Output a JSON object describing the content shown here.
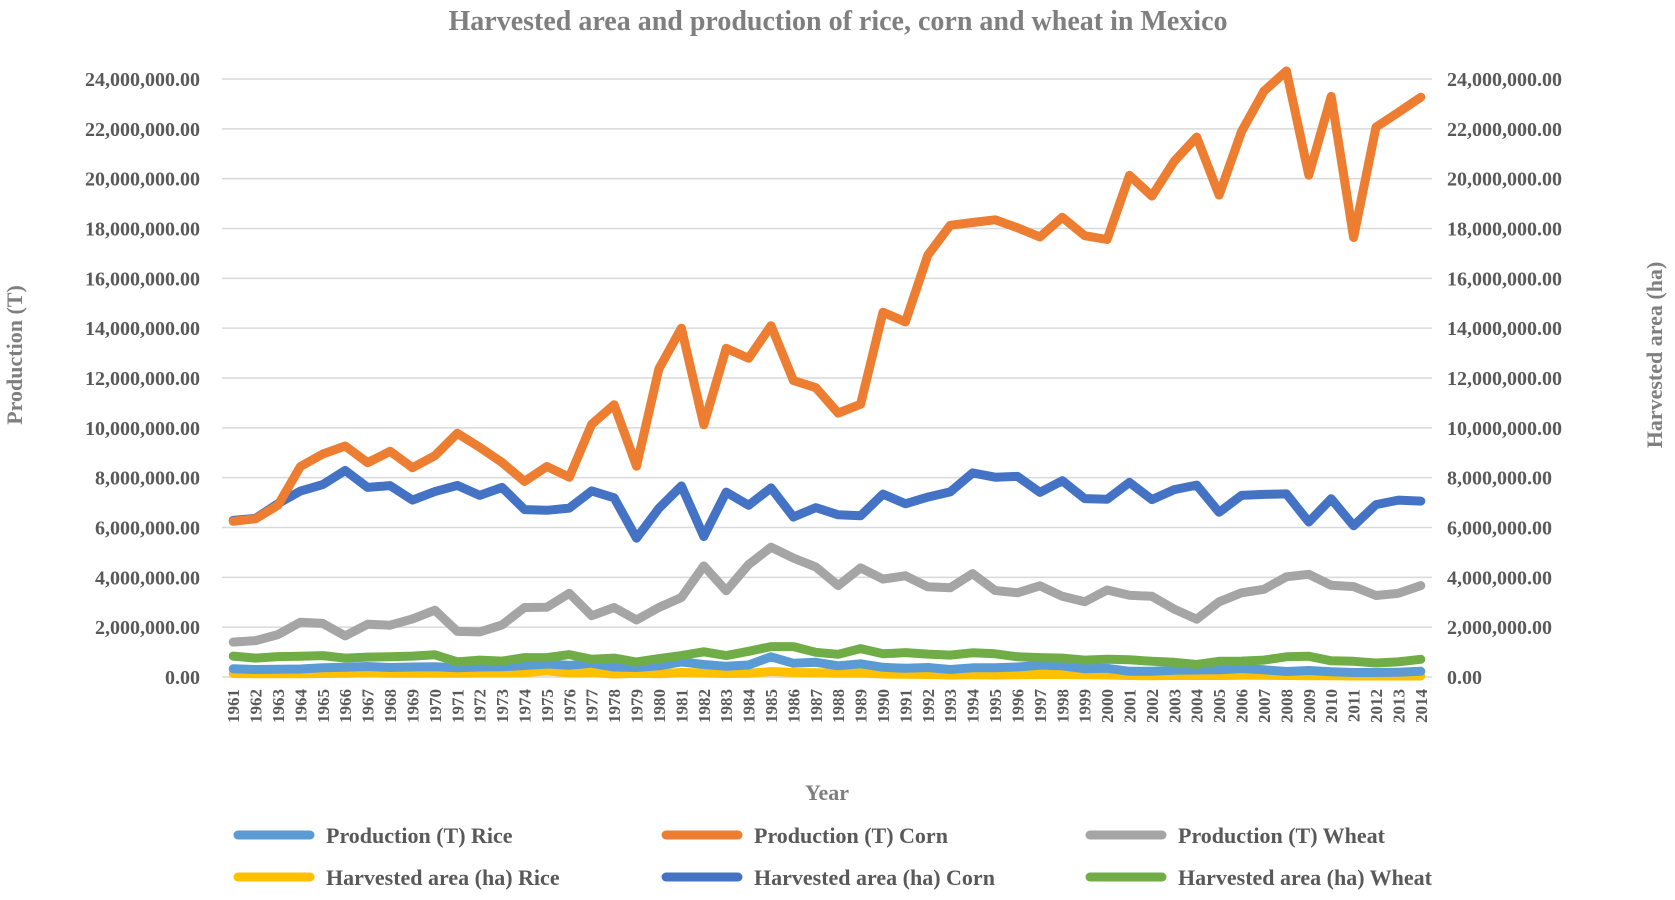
{
  "chart_data": {
    "type": "line",
    "title": "Harvested area and production of rice, corn and wheat in Mexico",
    "xlabel": "Year",
    "ylabel_left": "Production (T)",
    "ylabel_right": "Harvested area  (ha)",
    "ylim_left": [
      0,
      24000000
    ],
    "ylim_right": [
      0,
      24000000
    ],
    "y_tick_labels": [
      "0.00",
      "2,000,000.00",
      "4,000,000.00",
      "6,000,000.00",
      "8,000,000.00",
      "10,000,000.00",
      "12,000,000.00",
      "14,000,000.00",
      "16,000,000.00",
      "18,000,000.00",
      "20,000,000.00",
      "22,000,000.00",
      "24,000,000.00"
    ],
    "y_tick_values": [
      0,
      2000000,
      4000000,
      6000000,
      8000000,
      10000000,
      12000000,
      14000000,
      16000000,
      18000000,
      20000000,
      22000000,
      24000000
    ],
    "grid": true,
    "legend_position": "bottom",
    "x": [
      "1961",
      "1962",
      "1963",
      "1964",
      "1965",
      "1966",
      "1967",
      "1968",
      "1969",
      "1970",
      "1971",
      "1972",
      "1973",
      "1974",
      "1975",
      "1976",
      "1977",
      "1978",
      "1979",
      "1980",
      "1981",
      "1982",
      "1983",
      "1984",
      "1985",
      "1986",
      "1987",
      "1988",
      "1989",
      "1990",
      "1991",
      "1992",
      "1993",
      "1994",
      "1995",
      "1996",
      "1997",
      "1998",
      "1999",
      "2000",
      "2001",
      "2002",
      "2003",
      "2004",
      "2005",
      "2006",
      "2007",
      "2008",
      "2009",
      "2010",
      "2011",
      "2012",
      "2013",
      "2014"
    ],
    "series": [
      {
        "name": "Production (T) Rice",
        "color": "#5b9bd5",
        "axis": "left",
        "values": [
          330000,
          300000,
          310000,
          320000,
          370000,
          390000,
          420000,
          380000,
          400000,
          410000,
          370000,
          400000,
          410000,
          460000,
          520000,
          470000,
          550000,
          400000,
          380000,
          450000,
          600000,
          500000,
          430000,
          480000,
          810000,
          550000,
          590000,
          450000,
          530000,
          390000,
          350000,
          380000,
          300000,
          370000,
          370000,
          400000,
          470000,
          450000,
          330000,
          350000,
          230000,
          230000,
          270000,
          280000,
          290000,
          340000,
          290000,
          220000,
          260000,
          210000,
          180000,
          180000,
          190000,
          230000
        ]
      },
      {
        "name": "Production (T) Corn",
        "color": "#ed7d31",
        "axis": "left",
        "values": [
          6250000,
          6350000,
          6900000,
          8450000,
          8950000,
          9270000,
          8600000,
          9060000,
          8400000,
          8880000,
          9780000,
          9220000,
          8610000,
          7850000,
          8450000,
          8020000,
          10140000,
          10930000,
          8460000,
          12370000,
          14000000,
          10120000,
          13190000,
          12790000,
          14100000,
          11900000,
          11610000,
          10590000,
          10950000,
          14640000,
          14250000,
          16930000,
          18130000,
          18240000,
          18350000,
          18030000,
          17660000,
          18450000,
          17710000,
          17560000,
          20130000,
          19300000,
          20700000,
          21670000,
          19340000,
          21890000,
          23510000,
          24320000,
          20140000,
          23300000,
          17640000,
          22070000,
          22660000,
          23270000
        ]
      },
      {
        "name": "Production (T) Wheat",
        "color": "#a5a5a5",
        "axis": "left",
        "values": [
          1400000,
          1460000,
          1700000,
          2200000,
          2150000,
          1650000,
          2120000,
          2080000,
          2330000,
          2680000,
          1830000,
          1810000,
          2090000,
          2790000,
          2800000,
          3360000,
          2460000,
          2790000,
          2290000,
          2790000,
          3190000,
          4460000,
          3460000,
          4510000,
          5210000,
          4770000,
          4420000,
          3670000,
          4380000,
          3930000,
          4060000,
          3620000,
          3580000,
          4150000,
          3470000,
          3380000,
          3660000,
          3240000,
          3020000,
          3490000,
          3280000,
          3240000,
          2720000,
          2320000,
          3020000,
          3380000,
          3520000,
          4020000,
          4120000,
          3680000,
          3630000,
          3270000,
          3360000,
          3670000
        ]
      },
      {
        "name": "Harvested area (ha) Rice",
        "color": "#ffc000",
        "axis": "right",
        "values": [
          140000,
          130000,
          130000,
          130000,
          140000,
          150000,
          170000,
          150000,
          150000,
          160000,
          150000,
          160000,
          160000,
          170000,
          250000,
          160000,
          180000,
          120000,
          150000,
          130000,
          180000,
          160000,
          140000,
          150000,
          220000,
          180000,
          170000,
          150000,
          160000,
          120000,
          110000,
          100000,
          80000,
          90000,
          80000,
          90000,
          100000,
          100000,
          90000,
          80000,
          60000,
          50000,
          60000,
          60000,
          60000,
          70000,
          70000,
          60000,
          50000,
          50000,
          40000,
          40000,
          40000,
          40000
        ]
      },
      {
        "name": "Harvested area (ha) Corn",
        "color": "#4472c4",
        "axis": "right",
        "values": [
          6290000,
          6370000,
          6960000,
          7460000,
          7720000,
          8290000,
          7610000,
          7680000,
          7100000,
          7440000,
          7690000,
          7290000,
          7610000,
          6720000,
          6690000,
          6780000,
          7470000,
          7190000,
          5570000,
          6770000,
          7670000,
          5640000,
          7420000,
          6890000,
          7590000,
          6420000,
          6800000,
          6510000,
          6470000,
          7340000,
          6950000,
          7220000,
          7430000,
          8190000,
          8020000,
          8050000,
          7410000,
          7880000,
          7160000,
          7130000,
          7810000,
          7120000,
          7520000,
          7700000,
          6610000,
          7290000,
          7330000,
          7350000,
          6220000,
          7150000,
          6070000,
          6920000,
          7100000,
          7060000
        ]
      },
      {
        "name": "Harvested area (ha) Wheat",
        "color": "#70ad47",
        "axis": "right",
        "values": [
          840000,
          760000,
          820000,
          830000,
          860000,
          760000,
          800000,
          810000,
          840000,
          890000,
          610000,
          680000,
          640000,
          780000,
          780000,
          900000,
          710000,
          760000,
          600000,
          740000,
          860000,
          1010000,
          860000,
          1030000,
          1220000,
          1220000,
          990000,
          910000,
          1140000,
          930000,
          980000,
          920000,
          880000,
          970000,
          930000,
          810000,
          780000,
          760000,
          680000,
          710000,
          690000,
          630000,
          590000,
          500000,
          630000,
          640000,
          680000,
          810000,
          830000,
          650000,
          630000,
          560000,
          610000,
          710000
        ]
      }
    ]
  }
}
